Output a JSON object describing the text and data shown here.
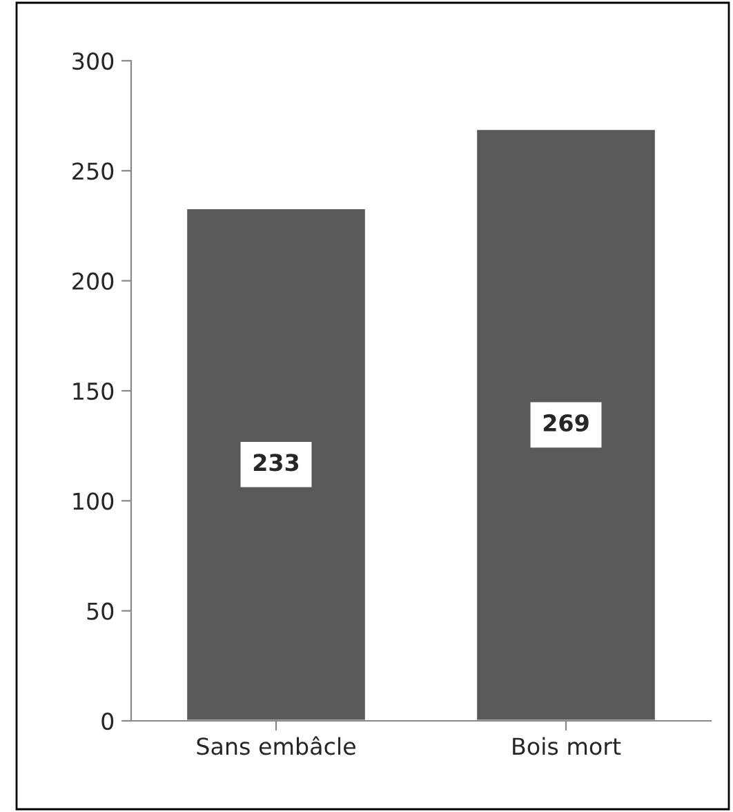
{
  "chart_data": {
    "type": "bar",
    "categories": [
      "Sans embâcle",
      "Bois mort"
    ],
    "values": [
      233,
      269
    ],
    "color": "#595959",
    "ylim": [
      0,
      300
    ],
    "yticks": [
      0,
      50,
      100,
      150,
      200,
      250,
      300
    ],
    "data_labels": true,
    "grid": false
  }
}
